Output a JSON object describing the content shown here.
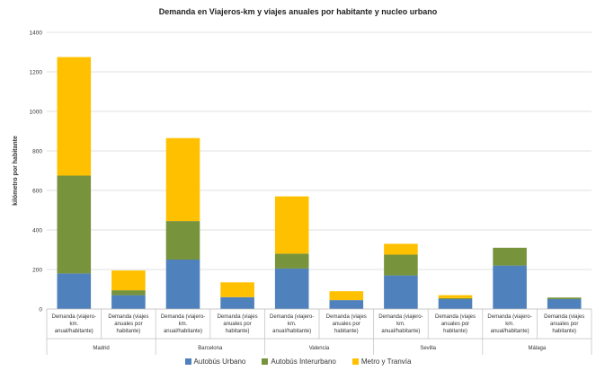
{
  "chart_data": {
    "type": "bar",
    "stacked": true,
    "title": "Demanda en Viajeros-km y viajes anuales por habitante y nucleo urbano",
    "ylabel": "kilómetro por habitante",
    "xlabel": "",
    "ylim": [
      0,
      1400
    ],
    "yticks": [
      0,
      200,
      400,
      600,
      800,
      1000,
      1200,
      1400
    ],
    "grid": true,
    "legend_position": "bottom",
    "groups": [
      "Madrid",
      "Barcelona",
      "Valencia",
      "Sevilla",
      "Málaga"
    ],
    "category_labels": {
      "pkm": [
        "Demanda (viajero-",
        "km.",
        "anual/habitante)"
      ],
      "viajes": [
        "Demanda (viajes",
        "anuales por",
        "habitante)"
      ]
    },
    "categories": [
      {
        "group": "Madrid",
        "kind": "pkm"
      },
      {
        "group": "Madrid",
        "kind": "viajes"
      },
      {
        "group": "Barcelona",
        "kind": "pkm"
      },
      {
        "group": "Barcelona",
        "kind": "viajes"
      },
      {
        "group": "Valencia",
        "kind": "pkm"
      },
      {
        "group": "Valencia",
        "kind": "viajes"
      },
      {
        "group": "Sevilla",
        "kind": "pkm"
      },
      {
        "group": "Sevilla",
        "kind": "viajes"
      },
      {
        "group": "Málaga",
        "kind": "pkm"
      },
      {
        "group": "Málaga",
        "kind": "viajes"
      }
    ],
    "series": [
      {
        "name": "Autobús Urbano",
        "color": "#4F81BD",
        "values": [
          180,
          70,
          250,
          60,
          205,
          45,
          170,
          50,
          220,
          50
        ]
      },
      {
        "name": "Autobús Interurbano",
        "color": "#77933C",
        "values": [
          495,
          25,
          195,
          0,
          75,
          0,
          105,
          5,
          90,
          8
        ]
      },
      {
        "name": "Metro y Tranvía",
        "color": "#FFC000",
        "values": [
          600,
          100,
          420,
          75,
          290,
          45,
          55,
          15,
          0,
          0
        ]
      }
    ]
  }
}
